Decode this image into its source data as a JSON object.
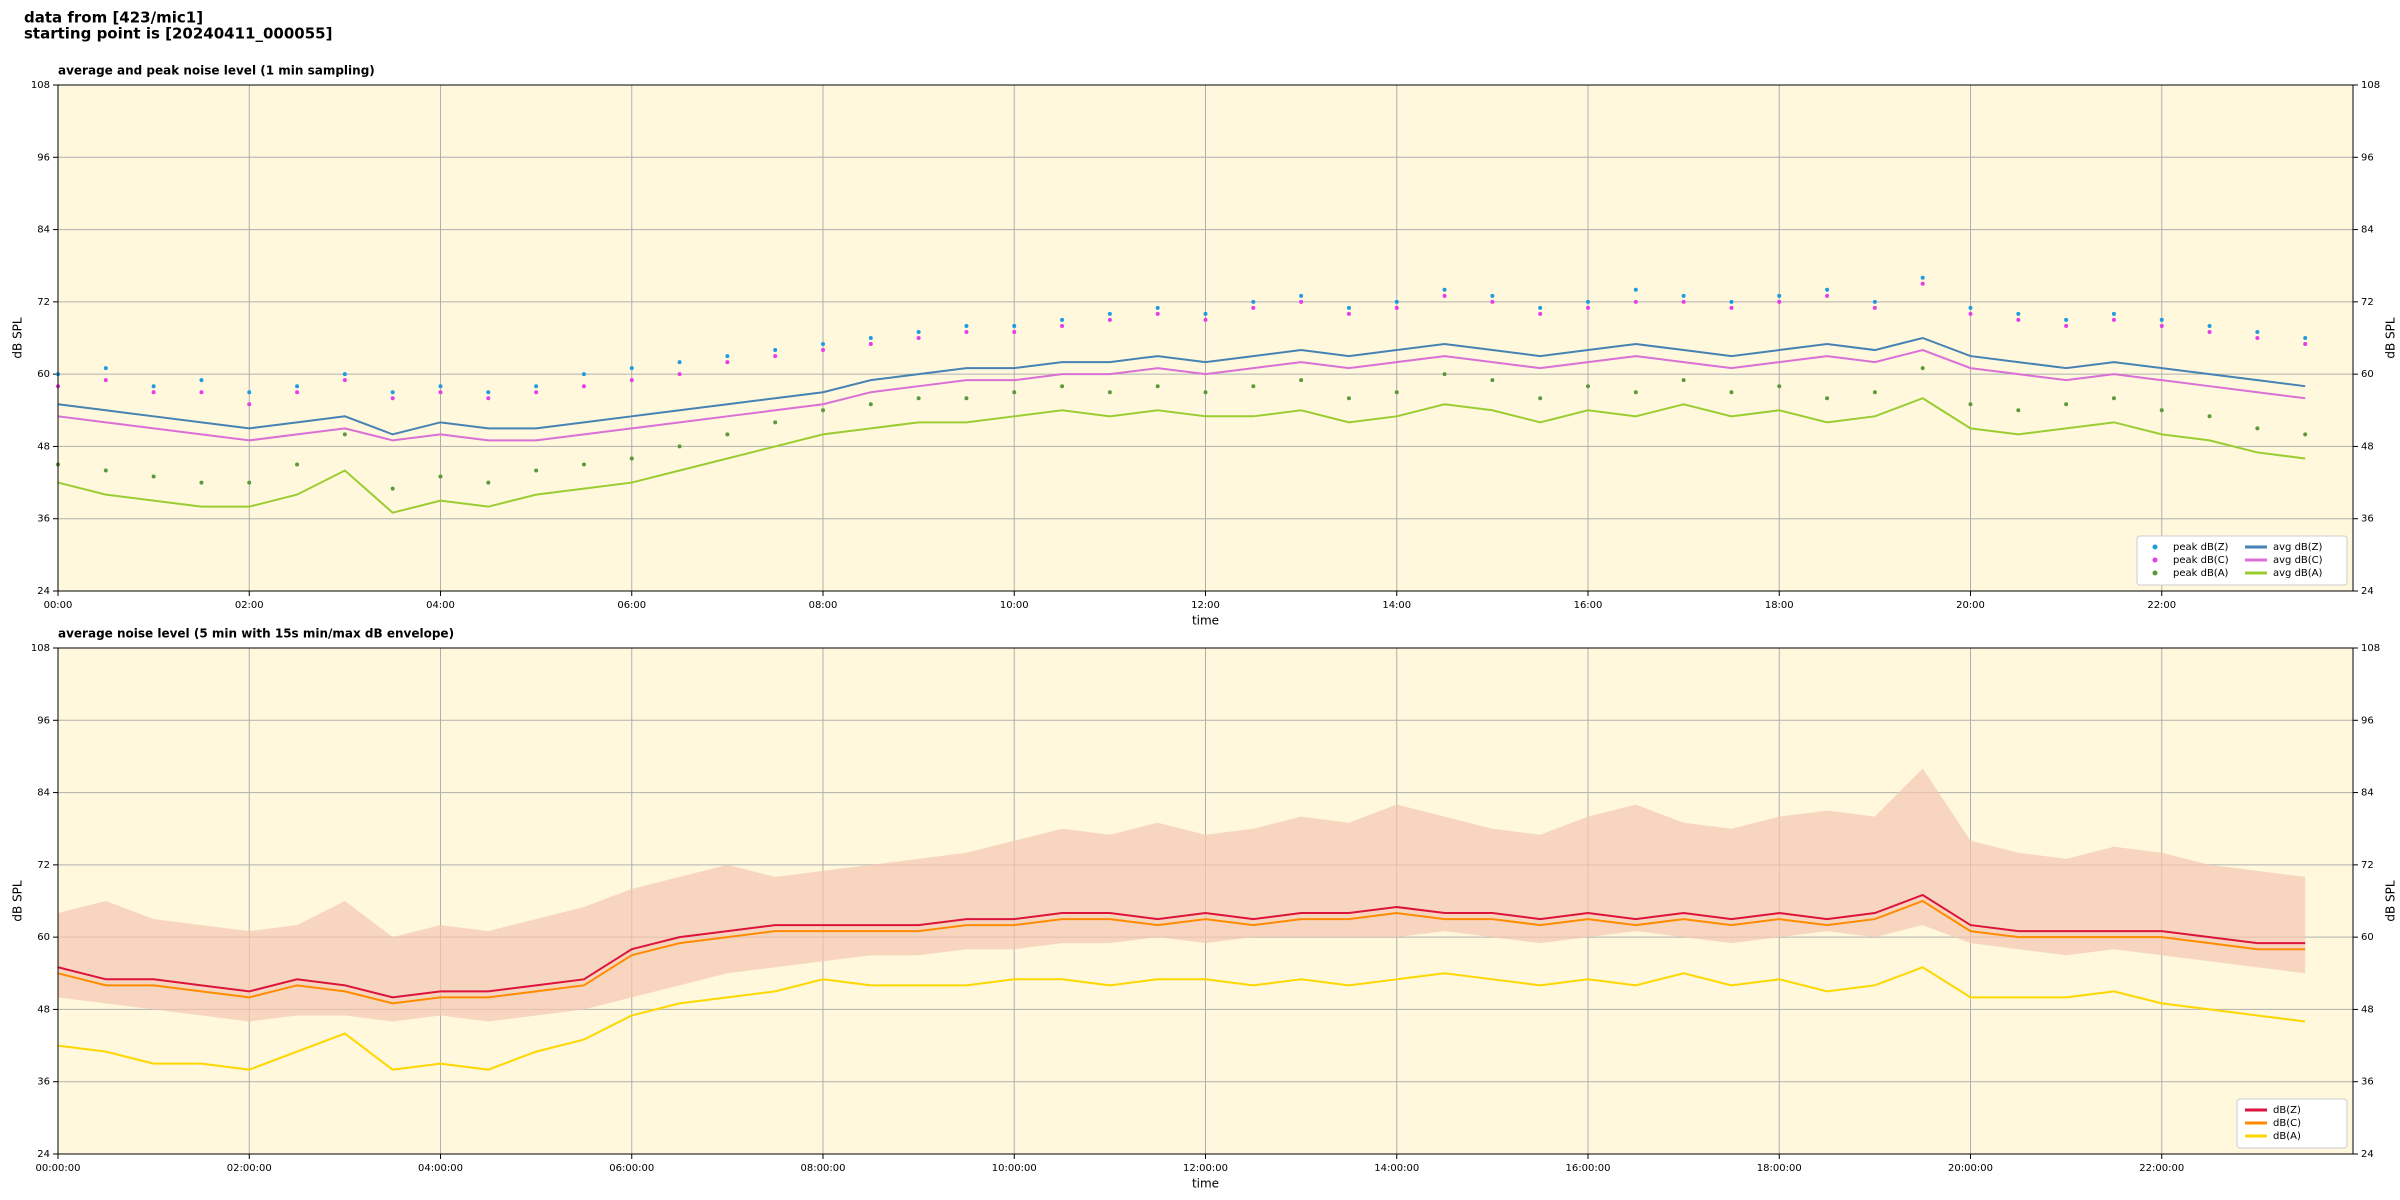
{
  "header": {
    "line1": "data from [423/mic1]",
    "line2": "starting point is [20240411_000055]"
  },
  "chart_data": [
    {
      "type": "line",
      "title": "average and peak noise level (1 min sampling)",
      "xlabel": "time",
      "ylabel": "dB SPL",
      "xlim": [
        0,
        24
      ],
      "xticks": [
        {
          "value": 0,
          "label": "00:00"
        },
        {
          "value": 2,
          "label": "02:00"
        },
        {
          "value": 4,
          "label": "04:00"
        },
        {
          "value": 6,
          "label": "06:00"
        },
        {
          "value": 8,
          "label": "08:00"
        },
        {
          "value": 10,
          "label": "10:00"
        },
        {
          "value": 12,
          "label": "12:00"
        },
        {
          "value": 14,
          "label": "14:00"
        },
        {
          "value": 16,
          "label": "16:00"
        },
        {
          "value": 18,
          "label": "18:00"
        },
        {
          "value": 20,
          "label": "20:00"
        },
        {
          "value": 22,
          "label": "22:00"
        }
      ],
      "ylim": [
        24,
        108
      ],
      "yticks": [
        24,
        36,
        48,
        60,
        72,
        84,
        96,
        108
      ],
      "grid": true,
      "legend": "lower right",
      "legend_columns": 2,
      "x": [
        0,
        0.5,
        1,
        1.5,
        2,
        2.5,
        3,
        3.5,
        4,
        4.5,
        5,
        5.5,
        6,
        6.5,
        7,
        7.5,
        8,
        8.5,
        9,
        9.5,
        10,
        10.5,
        11,
        11.5,
        12,
        12.5,
        13,
        13.5,
        14,
        14.5,
        15,
        15.5,
        16,
        16.5,
        17,
        17.5,
        18,
        18.5,
        19,
        19.5,
        20,
        20.5,
        21,
        21.5,
        22,
        22.5,
        23,
        23.5
      ],
      "series": [
        {
          "name": "peak dB(Z)",
          "color": "#1f9be0",
          "style": "markers",
          "values": [
            60,
            61,
            58,
            59,
            57,
            58,
            60,
            57,
            58,
            57,
            58,
            60,
            61,
            62,
            63,
            64,
            65,
            66,
            67,
            68,
            68,
            69,
            70,
            71,
            70,
            72,
            73,
            71,
            72,
            74,
            73,
            71,
            72,
            74,
            73,
            72,
            73,
            74,
            72,
            76,
            71,
            70,
            69,
            70,
            69,
            68,
            67,
            66
          ]
        },
        {
          "name": "peak dB(C)",
          "color": "#e83ce8",
          "style": "markers",
          "values": [
            58,
            59,
            57,
            57,
            55,
            57,
            59,
            56,
            57,
            56,
            57,
            58,
            59,
            60,
            62,
            63,
            64,
            65,
            66,
            67,
            67,
            68,
            69,
            70,
            69,
            71,
            72,
            70,
            71,
            73,
            72,
            70,
            71,
            72,
            72,
            71,
            72,
            73,
            71,
            75,
            70,
            69,
            68,
            69,
            68,
            67,
            66,
            65
          ]
        },
        {
          "name": "peak dB(A)",
          "color": "#5a9a3a",
          "style": "markers",
          "values": [
            45,
            44,
            43,
            42,
            42,
            45,
            50,
            41,
            43,
            42,
            44,
            45,
            46,
            48,
            50,
            52,
            54,
            55,
            56,
            56,
            57,
            58,
            57,
            58,
            57,
            58,
            59,
            56,
            57,
            60,
            59,
            56,
            58,
            57,
            59,
            57,
            58,
            56,
            57,
            61,
            55,
            54,
            55,
            56,
            54,
            53,
            51,
            50
          ]
        },
        {
          "name": "avg dB(Z)",
          "color": "#4682b4",
          "style": "line",
          "values": [
            55,
            54,
            53,
            52,
            51,
            52,
            53,
            50,
            52,
            51,
            51,
            52,
            53,
            54,
            55,
            56,
            57,
            59,
            60,
            61,
            61,
            62,
            62,
            63,
            62,
            63,
            64,
            63,
            64,
            65,
            64,
            63,
            64,
            65,
            64,
            63,
            64,
            65,
            64,
            66,
            63,
            62,
            61,
            62,
            61,
            60,
            59,
            58
          ]
        },
        {
          "name": "avg dB(C)",
          "color": "#da70d6",
          "style": "line",
          "values": [
            53,
            52,
            51,
            50,
            49,
            50,
            51,
            49,
            50,
            49,
            49,
            50,
            51,
            52,
            53,
            54,
            55,
            57,
            58,
            59,
            59,
            60,
            60,
            61,
            60,
            61,
            62,
            61,
            62,
            63,
            62,
            61,
            62,
            63,
            62,
            61,
            62,
            63,
            62,
            64,
            61,
            60,
            59,
            60,
            59,
            58,
            57,
            56
          ]
        },
        {
          "name": "avg dB(A)",
          "color": "#9acd32",
          "style": "line",
          "values": [
            42,
            40,
            39,
            38,
            38,
            40,
            44,
            37,
            39,
            38,
            40,
            41,
            42,
            44,
            46,
            48,
            50,
            51,
            52,
            52,
            53,
            54,
            53,
            54,
            53,
            53,
            54,
            52,
            53,
            55,
            54,
            52,
            54,
            53,
            55,
            53,
            54,
            52,
            53,
            56,
            51,
            50,
            51,
            52,
            50,
            49,
            47,
            46
          ]
        }
      ]
    },
    {
      "type": "line",
      "title": "average noise level (5 min with 15s min/max dB envelope)",
      "xlabel": "time",
      "ylabel": "dB SPL",
      "xlim": [
        0,
        24
      ],
      "xticks": [
        {
          "value": 0,
          "label": "00:00:00"
        },
        {
          "value": 2,
          "label": "02:00:00"
        },
        {
          "value": 4,
          "label": "04:00:00"
        },
        {
          "value": 6,
          "label": "06:00:00"
        },
        {
          "value": 8,
          "label": "08:00:00"
        },
        {
          "value": 10,
          "label": "10:00:00"
        },
        {
          "value": 12,
          "label": "12:00:00"
        },
        {
          "value": 14,
          "label": "14:00:00"
        },
        {
          "value": 16,
          "label": "16:00:00"
        },
        {
          "value": 18,
          "label": "18:00:00"
        },
        {
          "value": 20,
          "label": "20:00:00"
        },
        {
          "value": 22,
          "label": "22:00:00"
        }
      ],
      "ylim": [
        24,
        108
      ],
      "yticks": [
        24,
        36,
        48,
        60,
        72,
        84,
        96,
        108
      ],
      "grid": true,
      "legend": "lower right",
      "legend_columns": 1,
      "x": [
        0,
        0.5,
        1,
        1.5,
        2,
        2.5,
        3,
        3.5,
        4,
        4.5,
        5,
        5.5,
        6,
        6.5,
        7,
        7.5,
        8,
        8.5,
        9,
        9.5,
        10,
        10.5,
        11,
        11.5,
        12,
        12.5,
        13,
        13.5,
        14,
        14.5,
        15,
        15.5,
        16,
        16.5,
        17,
        17.5,
        18,
        18.5,
        19,
        19.5,
        20,
        20.5,
        21,
        21.5,
        22,
        22.5,
        23,
        23.5
      ],
      "envelope": {
        "color": "#f5c6b0",
        "min": [
          50,
          49,
          48,
          47,
          46,
          47,
          47,
          46,
          47,
          46,
          47,
          48,
          50,
          52,
          54,
          55,
          56,
          57,
          57,
          58,
          58,
          59,
          59,
          60,
          59,
          60,
          60,
          60,
          60,
          61,
          60,
          59,
          60,
          61,
          60,
          59,
          60,
          61,
          60,
          62,
          59,
          58,
          57,
          58,
          57,
          56,
          55,
          54
        ],
        "max": [
          64,
          66,
          63,
          62,
          61,
          62,
          66,
          60,
          62,
          61,
          63,
          65,
          68,
          70,
          72,
          70,
          71,
          72,
          73,
          74,
          76,
          78,
          77,
          79,
          77,
          78,
          80,
          79,
          82,
          80,
          78,
          77,
          80,
          82,
          79,
          78,
          80,
          81,
          80,
          88,
          76,
          74,
          73,
          75,
          74,
          72,
          71,
          70
        ]
      },
      "series": [
        {
          "name": "dB(Z)",
          "color": "#dc143c",
          "style": "line",
          "values": [
            55,
            53,
            53,
            52,
            51,
            53,
            52,
            50,
            51,
            51,
            52,
            53,
            58,
            60,
            61,
            62,
            62,
            62,
            62,
            63,
            63,
            64,
            64,
            63,
            64,
            63,
            64,
            64,
            65,
            64,
            64,
            63,
            64,
            63,
            64,
            63,
            64,
            63,
            64,
            67,
            62,
            61,
            61,
            61,
            61,
            60,
            59,
            59
          ]
        },
        {
          "name": "dB(C)",
          "color": "#ff8c00",
          "style": "line",
          "values": [
            54,
            52,
            52,
            51,
            50,
            52,
            51,
            49,
            50,
            50,
            51,
            52,
            57,
            59,
            60,
            61,
            61,
            61,
            61,
            62,
            62,
            63,
            63,
            62,
            63,
            62,
            63,
            63,
            64,
            63,
            63,
            62,
            63,
            62,
            63,
            62,
            63,
            62,
            63,
            66,
            61,
            60,
            60,
            60,
            60,
            59,
            58,
            58
          ]
        },
        {
          "name": "dB(A)",
          "color": "#ffd700",
          "style": "line",
          "values": [
            42,
            41,
            39,
            39,
            38,
            41,
            44,
            38,
            39,
            38,
            41,
            43,
            47,
            49,
            50,
            51,
            53,
            52,
            52,
            52,
            53,
            53,
            52,
            53,
            53,
            52,
            53,
            52,
            53,
            54,
            53,
            52,
            53,
            52,
            54,
            52,
            53,
            51,
            52,
            55,
            50,
            50,
            50,
            51,
            49,
            48,
            47,
            46
          ]
        }
      ]
    }
  ]
}
